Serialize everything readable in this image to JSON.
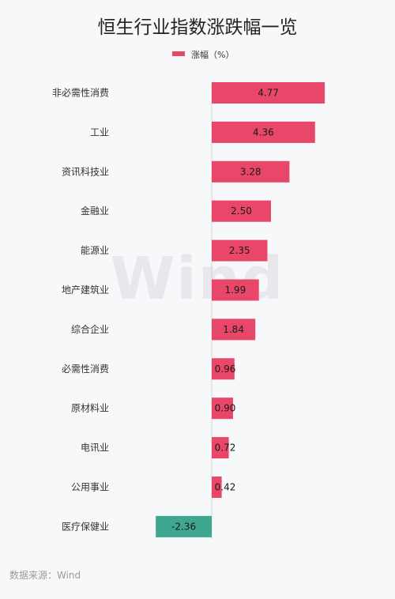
{
  "watermark": "Wind",
  "source": "数据来源：Wind",
  "chart_data": {
    "type": "bar",
    "orientation": "horizontal",
    "title": "恒生行业指数涨跌幅一览",
    "legend": "top-center",
    "categories": [
      "非必需性消费",
      "工业",
      "资讯科技业",
      "金融业",
      "能源业",
      "地产建筑业",
      "综合企业",
      "必需性消费",
      "原材料业",
      "电讯业",
      "公用事业",
      "医疗保健业"
    ],
    "series": [
      {
        "name": "涨幅（%）",
        "values": [
          4.77,
          4.36,
          3.28,
          2.5,
          2.35,
          1.99,
          1.84,
          0.96,
          0.9,
          0.72,
          0.42,
          -2.36
        ],
        "labels": [
          "4.77",
          "4.36",
          "3.28",
          "2.50",
          "2.35",
          "1.99",
          "1.84",
          "0.96",
          "0.90",
          "0.72",
          "0.42",
          "-2.36"
        ]
      }
    ],
    "colors": {
      "positive": "#e8476a",
      "negative": "#3fa68f"
    },
    "grid": false
  }
}
